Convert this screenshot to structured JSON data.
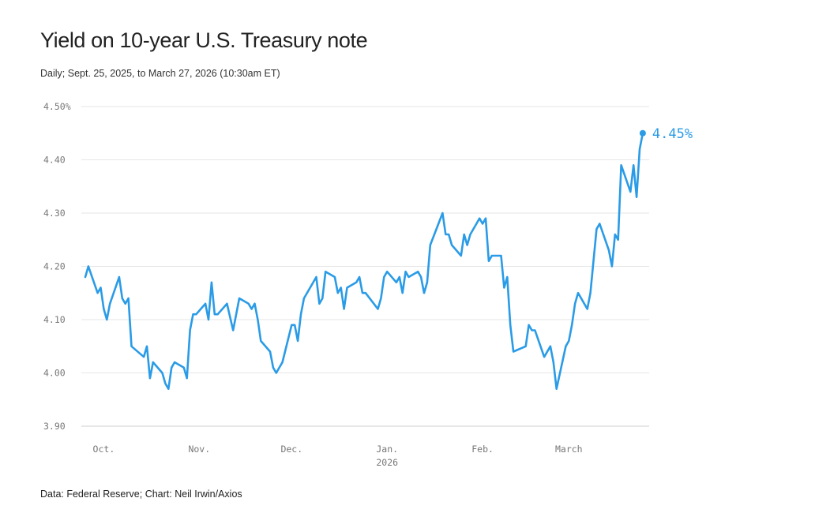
{
  "chart_data": {
    "type": "line",
    "title": "Yield on 10-year U.S. Treasury note",
    "subtitle": "Daily; Sept. 25, 2025, to March 27, 2026 (10:30am ET)",
    "source": "Data: Federal Reserve; Chart: Neil Irwin/Axios",
    "series_name": "10-year Treasury yield",
    "color": "#2a9be6",
    "y_ticks": [
      {
        "value": 4.5,
        "label": "4.50%"
      },
      {
        "value": 4.4,
        "label": "4.40"
      },
      {
        "value": 4.3,
        "label": "4.30"
      },
      {
        "value": 4.2,
        "label": "4.20"
      },
      {
        "value": 4.1,
        "label": "4.10"
      },
      {
        "value": 4.0,
        "label": "4.00"
      },
      {
        "value": 3.9,
        "label": "3.90"
      }
    ],
    "x_ticks": [
      {
        "day": 6,
        "label": "Oct."
      },
      {
        "day": 37,
        "label": "Nov."
      },
      {
        "day": 67,
        "label": "Dec."
      },
      {
        "day": 98,
        "label": "Jan.",
        "sublabel": "2026"
      },
      {
        "day": 129,
        "label": "Feb."
      },
      {
        "day": 157,
        "label": "March"
      }
    ],
    "ylim": [
      3.9,
      4.5
    ],
    "xlim_days": [
      0,
      184
    ],
    "x_unit": "days since Sept. 25, 2025",
    "end_label": "4.45%",
    "points": [
      [
        0,
        4.18
      ],
      [
        1,
        4.2
      ],
      [
        4,
        4.15
      ],
      [
        5,
        4.16
      ],
      [
        6,
        4.12
      ],
      [
        7,
        4.1
      ],
      [
        8,
        4.13
      ],
      [
        11,
        4.18
      ],
      [
        12,
        4.14
      ],
      [
        13,
        4.13
      ],
      [
        14,
        4.14
      ],
      [
        15,
        4.05
      ],
      [
        19,
        4.03
      ],
      [
        20,
        4.05
      ],
      [
        21,
        3.99
      ],
      [
        22,
        4.02
      ],
      [
        25,
        4.0
      ],
      [
        26,
        3.98
      ],
      [
        27,
        3.97
      ],
      [
        28,
        4.01
      ],
      [
        29,
        4.02
      ],
      [
        32,
        4.01
      ],
      [
        33,
        3.99
      ],
      [
        34,
        4.08
      ],
      [
        35,
        4.11
      ],
      [
        36,
        4.11
      ],
      [
        39,
        4.13
      ],
      [
        40,
        4.1
      ],
      [
        41,
        4.17
      ],
      [
        42,
        4.11
      ],
      [
        43,
        4.11
      ],
      [
        46,
        4.13
      ],
      [
        48,
        4.08
      ],
      [
        50,
        4.14
      ],
      [
        53,
        4.13
      ],
      [
        54,
        4.12
      ],
      [
        55,
        4.13
      ],
      [
        56,
        4.1
      ],
      [
        57,
        4.06
      ],
      [
        60,
        4.04
      ],
      [
        61,
        4.01
      ],
      [
        62,
        4.0
      ],
      [
        64,
        4.02
      ],
      [
        67,
        4.09
      ],
      [
        68,
        4.09
      ],
      [
        69,
        4.06
      ],
      [
        70,
        4.11
      ],
      [
        71,
        4.14
      ],
      [
        75,
        4.18
      ],
      [
        76,
        4.13
      ],
      [
        77,
        4.14
      ],
      [
        78,
        4.19
      ],
      [
        81,
        4.18
      ],
      [
        82,
        4.15
      ],
      [
        83,
        4.16
      ],
      [
        84,
        4.12
      ],
      [
        85,
        4.16
      ],
      [
        88,
        4.17
      ],
      [
        89,
        4.18
      ],
      [
        90,
        4.15
      ],
      [
        91,
        4.15
      ],
      [
        95,
        4.12
      ],
      [
        96,
        4.14
      ],
      [
        97,
        4.18
      ],
      [
        98,
        4.19
      ],
      [
        101,
        4.17
      ],
      [
        102,
        4.18
      ],
      [
        103,
        4.15
      ],
      [
        104,
        4.19
      ],
      [
        105,
        4.18
      ],
      [
        108,
        4.19
      ],
      [
        109,
        4.18
      ],
      [
        110,
        4.15
      ],
      [
        111,
        4.17
      ],
      [
        112,
        4.24
      ],
      [
        116,
        4.3
      ],
      [
        117,
        4.26
      ],
      [
        118,
        4.26
      ],
      [
        119,
        4.24
      ],
      [
        122,
        4.22
      ],
      [
        123,
        4.26
      ],
      [
        124,
        4.24
      ],
      [
        125,
        4.26
      ],
      [
        127,
        4.28
      ],
      [
        128,
        4.29
      ],
      [
        129,
        4.28
      ],
      [
        130,
        4.29
      ],
      [
        131,
        4.21
      ],
      [
        132,
        4.22
      ],
      [
        135,
        4.22
      ],
      [
        136,
        4.16
      ],
      [
        137,
        4.18
      ],
      [
        138,
        4.09
      ],
      [
        139,
        4.04
      ],
      [
        143,
        4.05
      ],
      [
        144,
        4.09
      ],
      [
        145,
        4.08
      ],
      [
        146,
        4.08
      ],
      [
        149,
        4.03
      ],
      [
        151,
        4.05
      ],
      [
        152,
        4.02
      ],
      [
        153,
        3.97
      ],
      [
        156,
        4.05
      ],
      [
        157,
        4.06
      ],
      [
        158,
        4.09
      ],
      [
        159,
        4.13
      ],
      [
        160,
        4.15
      ],
      [
        163,
        4.12
      ],
      [
        164,
        4.15
      ],
      [
        166,
        4.27
      ],
      [
        167,
        4.28
      ],
      [
        170,
        4.23
      ],
      [
        171,
        4.2
      ],
      [
        172,
        4.26
      ],
      [
        173,
        4.25
      ],
      [
        174,
        4.39
      ],
      [
        177,
        4.34
      ],
      [
        178,
        4.39
      ],
      [
        179,
        4.33
      ],
      [
        180,
        4.42
      ],
      [
        181,
        4.45
      ]
    ]
  }
}
